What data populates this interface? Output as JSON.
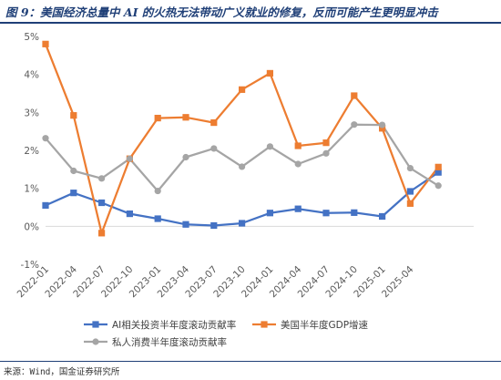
{
  "figure": {
    "title": "图 9：美国经济总量中 AI 的火热无法带动广义就业的修复，反而可能产生更明显冲击",
    "source": "来源：Wind，国金证券研究所"
  },
  "chart_data": {
    "type": "line",
    "title": "",
    "xlabel": "",
    "ylabel": "",
    "ylim": [
      -1,
      5
    ],
    "y_ticks": [
      "-1%",
      "0%",
      "1%",
      "2%",
      "3%",
      "4%",
      "5%"
    ],
    "grid": false,
    "legend_position": "bottom",
    "x_ticks": [
      "2022-01",
      "2022-04",
      "2022-07",
      "2022-10",
      "2023-01",
      "2023-04",
      "2023-07",
      "2023-10",
      "2024-01",
      "2024-04",
      "2024-07",
      "2024-10",
      "2025-01",
      "2025-04"
    ],
    "series": [
      {
        "name": "AI相关投资半年度滚动贡献率",
        "color": "#4472c4",
        "marker": "square",
        "points": [
          [
            0.0,
            0.55
          ],
          [
            1.0,
            0.88
          ],
          [
            2.0,
            0.62
          ],
          [
            3.0,
            0.33
          ],
          [
            4.0,
            0.2
          ],
          [
            5.0,
            0.05
          ],
          [
            6.0,
            0.02
          ],
          [
            7.0,
            0.08
          ],
          [
            8.0,
            0.35
          ],
          [
            9.0,
            0.46
          ],
          [
            10.0,
            0.35
          ],
          [
            11.0,
            0.36
          ],
          [
            12.0,
            0.26
          ],
          [
            13.0,
            0.92
          ],
          [
            14.0,
            1.42
          ]
        ]
      },
      {
        "name": "美国半年度GDP增速",
        "color": "#ed7d31",
        "marker": "square",
        "points": [
          [
            0.0,
            4.8
          ],
          [
            1.0,
            2.92
          ],
          [
            2.0,
            -0.18
          ],
          [
            3.0,
            1.78
          ],
          [
            4.0,
            2.85
          ],
          [
            5.0,
            2.87
          ],
          [
            6.0,
            2.73
          ],
          [
            7.0,
            3.6
          ],
          [
            8.0,
            4.03
          ],
          [
            9.0,
            2.12
          ],
          [
            10.0,
            2.2
          ],
          [
            11.0,
            3.44
          ],
          [
            12.0,
            2.58
          ],
          [
            13.0,
            0.6
          ],
          [
            14.0,
            1.56
          ]
        ]
      },
      {
        "name": "私人消费半年度滚动贡献率",
        "color": "#a5a5a5",
        "marker": "circle",
        "points": [
          [
            0.0,
            2.32
          ],
          [
            1.0,
            1.46
          ],
          [
            2.0,
            1.26
          ],
          [
            3.0,
            1.78
          ],
          [
            4.0,
            0.93
          ],
          [
            5.0,
            1.82
          ],
          [
            6.0,
            2.05
          ],
          [
            7.0,
            1.57
          ],
          [
            8.0,
            2.1
          ],
          [
            9.0,
            1.64
          ],
          [
            10.0,
            1.92
          ],
          [
            11.0,
            2.68
          ],
          [
            12.0,
            2.67
          ],
          [
            13.0,
            1.53
          ],
          [
            14.0,
            1.07
          ]
        ]
      }
    ]
  }
}
